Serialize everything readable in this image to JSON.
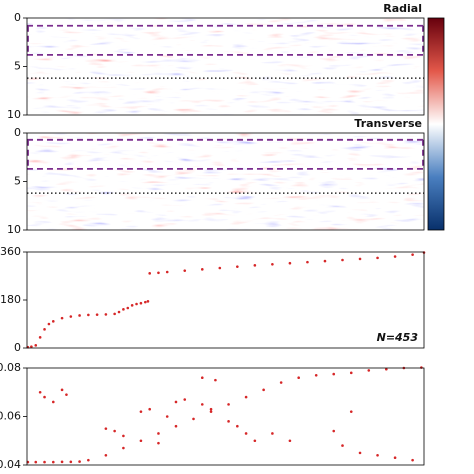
{
  "chart_data": [
    {
      "type": "heatmap",
      "title": "Radial",
      "ylim": [
        0,
        10
      ],
      "yticks": [
        0,
        5,
        10
      ],
      "box_lines": [
        0.8,
        3.8
      ],
      "box_color": "#7b2d8e",
      "dotted_line": 6.2
    },
    {
      "type": "heatmap",
      "title": "Transverse",
      "ylim": [
        0,
        10
      ],
      "yticks": [
        0,
        5,
        10
      ],
      "box_lines": [
        0.7,
        3.7
      ],
      "box_color": "#7b2d8e",
      "dotted_line": 6.2
    },
    {
      "type": "scatter",
      "color": "#d62728",
      "xlim": [
        0,
        453
      ],
      "ylim": [
        0,
        360
      ],
      "yticks": [
        0,
        180,
        360
      ],
      "annotation": "N=453",
      "x": [
        1,
        5,
        10,
        15,
        20,
        25,
        30,
        40,
        50,
        60,
        70,
        80,
        90,
        100,
        105,
        110,
        115,
        120,
        125,
        130,
        135,
        138,
        140,
        150,
        160,
        180,
        200,
        220,
        240,
        260,
        280,
        300,
        320,
        340,
        360,
        380,
        400,
        420,
        440,
        453
      ],
      "values": [
        3,
        5,
        10,
        40,
        70,
        90,
        100,
        112,
        118,
        122,
        124,
        125,
        126,
        128,
        135,
        145,
        150,
        160,
        165,
        168,
        172,
        175,
        280,
        282,
        285,
        290,
        295,
        300,
        305,
        310,
        314,
        318,
        322,
        326,
        330,
        334,
        338,
        343,
        350,
        358
      ]
    },
    {
      "type": "scatter",
      "color": "#d62728",
      "xlim": [
        0,
        453
      ],
      "ylim": [
        0.04,
        0.08
      ],
      "yticks": [
        0.04,
        0.06,
        0.08
      ],
      "x": [
        1,
        10,
        20,
        30,
        40,
        50,
        60,
        70,
        90,
        110,
        130,
        150,
        170,
        190,
        210,
        230,
        250,
        270,
        290,
        310,
        330,
        350,
        370,
        390,
        410,
        430,
        450,
        15,
        20,
        30,
        40,
        45,
        130,
        140,
        160,
        170,
        180,
        200,
        210,
        230,
        240,
        250,
        260,
        280,
        300,
        350,
        360,
        380,
        400,
        420,
        440,
        90,
        100,
        110,
        150,
        200,
        215,
        370
      ],
      "values": [
        0.0412,
        0.0412,
        0.0412,
        0.0412,
        0.0413,
        0.0413,
        0.0414,
        0.042,
        0.044,
        0.047,
        0.05,
        0.053,
        0.056,
        0.059,
        0.062,
        0.065,
        0.068,
        0.071,
        0.074,
        0.076,
        0.077,
        0.0775,
        0.078,
        0.079,
        0.0795,
        0.08,
        0.0802,
        0.07,
        0.068,
        0.066,
        0.071,
        0.069,
        0.062,
        0.063,
        0.06,
        0.066,
        0.067,
        0.065,
        0.063,
        0.058,
        0.056,
        0.053,
        0.05,
        0.053,
        0.05,
        0.054,
        0.048,
        0.045,
        0.044,
        0.043,
        0.042,
        0.055,
        0.054,
        0.052,
        0.049,
        0.076,
        0.075,
        0.062
      ]
    }
  ]
}
